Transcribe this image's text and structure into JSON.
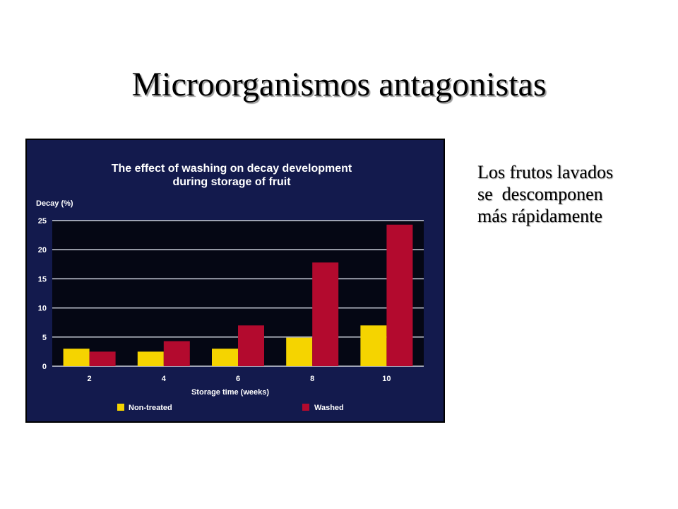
{
  "slide": {
    "title": "Microorganismos antagonistas",
    "side_text": [
      "Los frutos lavados",
      "se  descomponen",
      "más rápidamente"
    ]
  },
  "chart_data": {
    "type": "bar",
    "title": "The effect of washing on decay development",
    "subtitle": "during storage of fruit",
    "xlabel": "Storage time (weeks)",
    "ylabel": "Decay (%)",
    "categories": [
      "2",
      "4",
      "6",
      "8",
      "10"
    ],
    "series": [
      {
        "name": "Non-treated",
        "values": [
          3,
          2.5,
          3,
          4.9,
          7
        ],
        "color": "#f5d400"
      },
      {
        "name": "Washed",
        "values": [
          2.5,
          4.3,
          7,
          17.8,
          24.3
        ],
        "color": "#b30a2e"
      }
    ],
    "ylim": [
      0,
      25
    ],
    "yticks": [
      "0",
      "5",
      "10",
      "15",
      "20",
      "25"
    ],
    "grid": true,
    "legend": "bottom",
    "colors": {
      "background": "#131a4d",
      "plot_area": "#050714",
      "text": "#ffffff"
    }
  }
}
